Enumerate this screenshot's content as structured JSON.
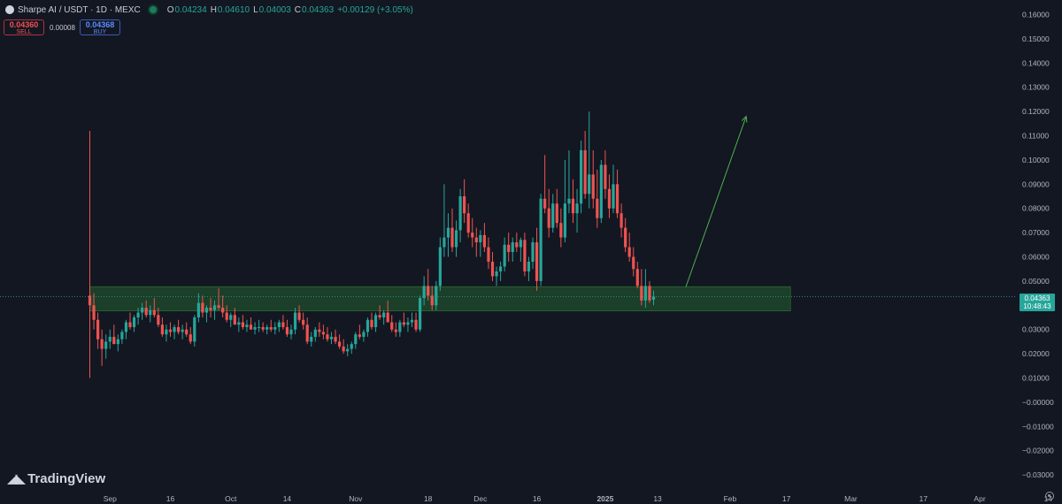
{
  "header": {
    "symbol": "Sharpe AI / USDT · 1D · MEXC",
    "open_label": "O",
    "open": "0.04234",
    "high_label": "H",
    "high": "0.04610",
    "low_label": "L",
    "low": "0.04003",
    "close_label": "C",
    "close": "0.04363",
    "change": "+0.00129 (+3.05%)"
  },
  "order": {
    "sell_price": "0.04360",
    "sell_label": "SELL",
    "spread": "0.00008",
    "buy_price": "0.04368",
    "buy_label": "BUY"
  },
  "price_label": {
    "price": "0.04363",
    "countdown": "10:48:43"
  },
  "brand": "TradingView",
  "colors": {
    "up": "#26a69a",
    "down": "#ef5350",
    "zone": "#1f4d2c",
    "arrow": "#4caf50",
    "background": "#131722"
  },
  "chart_data": {
    "type": "candlestick",
    "ylim": [
      -0.035,
      0.165
    ],
    "y_ticks": [
      "0.16000",
      "0.15000",
      "0.14000",
      "0.13000",
      "0.12000",
      "0.11000",
      "0.10000",
      "0.09000",
      "0.08000",
      "0.07000",
      "0.06000",
      "0.05000",
      "0.04000",
      "0.03000",
      "0.02000",
      "0.01000",
      "−0.00000",
      "−0.01000",
      "−0.02000",
      "−0.03000"
    ],
    "x_ticks": [
      "Sep",
      "16",
      "Oct",
      "14",
      "Nov",
      "18",
      "Dec",
      "16",
      "2025",
      "13",
      "Feb",
      "17",
      "Mar",
      "17",
      "Apr",
      "14"
    ],
    "x_tick_days": [
      5,
      20,
      35,
      49,
      66,
      84,
      97,
      111,
      128,
      141,
      159,
      173,
      189,
      207,
      221,
      238
    ],
    "first_day": 0,
    "current_price": 0.04363,
    "support_zone": {
      "top": 0.0477,
      "bottom": 0.0377,
      "start_day": 0,
      "end_day": 174
    },
    "arrow": {
      "from": [
        148,
        0.0475
      ],
      "to": [
        163,
        0.118
      ]
    },
    "candles": [
      [
        0.044,
        0.112,
        0.01,
        0.04
      ],
      [
        0.04,
        0.045,
        0.03,
        0.034
      ],
      [
        0.034,
        0.037,
        0.022,
        0.026
      ],
      [
        0.026,
        0.03,
        0.015,
        0.022
      ],
      [
        0.022,
        0.028,
        0.018,
        0.025
      ],
      [
        0.025,
        0.03,
        0.022,
        0.027
      ],
      [
        0.027,
        0.032,
        0.024,
        0.024
      ],
      [
        0.024,
        0.028,
        0.021,
        0.026
      ],
      [
        0.026,
        0.03,
        0.024,
        0.029
      ],
      [
        0.029,
        0.034,
        0.026,
        0.033
      ],
      [
        0.033,
        0.037,
        0.03,
        0.031
      ],
      [
        0.031,
        0.036,
        0.029,
        0.035
      ],
      [
        0.035,
        0.039,
        0.032,
        0.037
      ],
      [
        0.037,
        0.041,
        0.034,
        0.039
      ],
      [
        0.039,
        0.042,
        0.035,
        0.036
      ],
      [
        0.036,
        0.04,
        0.033,
        0.038
      ],
      [
        0.038,
        0.043,
        0.035,
        0.036
      ],
      [
        0.036,
        0.039,
        0.031,
        0.032
      ],
      [
        0.032,
        0.035,
        0.027,
        0.028
      ],
      [
        0.028,
        0.032,
        0.025,
        0.03
      ],
      [
        0.03,
        0.033,
        0.027,
        0.029
      ],
      [
        0.029,
        0.032,
        0.026,
        0.031
      ],
      [
        0.031,
        0.034,
        0.028,
        0.029
      ],
      [
        0.029,
        0.032,
        0.026,
        0.03
      ],
      [
        0.03,
        0.033,
        0.027,
        0.028
      ],
      [
        0.028,
        0.031,
        0.024,
        0.025
      ],
      [
        0.025,
        0.036,
        0.023,
        0.035
      ],
      [
        0.035,
        0.045,
        0.033,
        0.041
      ],
      [
        0.041,
        0.044,
        0.035,
        0.037
      ],
      [
        0.037,
        0.04,
        0.033,
        0.039
      ],
      [
        0.039,
        0.043,
        0.035,
        0.038
      ],
      [
        0.038,
        0.042,
        0.034,
        0.04
      ],
      [
        0.04,
        0.047,
        0.038,
        0.039
      ],
      [
        0.039,
        0.044,
        0.035,
        0.037
      ],
      [
        0.037,
        0.04,
        0.033,
        0.034
      ],
      [
        0.034,
        0.037,
        0.031,
        0.036
      ],
      [
        0.036,
        0.039,
        0.033,
        0.032
      ],
      [
        0.032,
        0.035,
        0.029,
        0.033
      ],
      [
        0.033,
        0.036,
        0.03,
        0.031
      ],
      [
        0.031,
        0.034,
        0.029,
        0.032
      ],
      [
        0.032,
        0.035,
        0.03,
        0.03
      ],
      [
        0.03,
        0.033,
        0.028,
        0.031
      ],
      [
        0.031,
        0.034,
        0.029,
        0.031
      ],
      [
        0.031,
        0.033,
        0.029,
        0.03
      ],
      [
        0.03,
        0.032,
        0.028,
        0.031
      ],
      [
        0.031,
        0.034,
        0.029,
        0.03
      ],
      [
        0.03,
        0.033,
        0.028,
        0.031
      ],
      [
        0.031,
        0.034,
        0.029,
        0.033
      ],
      [
        0.033,
        0.036,
        0.03,
        0.031
      ],
      [
        0.031,
        0.034,
        0.027,
        0.028
      ],
      [
        0.028,
        0.032,
        0.026,
        0.03
      ],
      [
        0.03,
        0.039,
        0.028,
        0.037
      ],
      [
        0.037,
        0.04,
        0.033,
        0.034
      ],
      [
        0.034,
        0.037,
        0.03,
        0.032
      ],
      [
        0.032,
        0.035,
        0.024,
        0.025
      ],
      [
        0.025,
        0.029,
        0.023,
        0.027
      ],
      [
        0.027,
        0.031,
        0.025,
        0.03
      ],
      [
        0.03,
        0.033,
        0.027,
        0.029
      ],
      [
        0.029,
        0.032,
        0.026,
        0.028
      ],
      [
        0.028,
        0.031,
        0.025,
        0.026
      ],
      [
        0.026,
        0.029,
        0.024,
        0.027
      ],
      [
        0.027,
        0.03,
        0.024,
        0.025
      ],
      [
        0.025,
        0.028,
        0.022,
        0.023
      ],
      [
        0.023,
        0.026,
        0.02,
        0.021
      ],
      [
        0.021,
        0.024,
        0.019,
        0.022
      ],
      [
        0.022,
        0.025,
        0.02,
        0.024
      ],
      [
        0.024,
        0.029,
        0.022,
        0.028
      ],
      [
        0.028,
        0.032,
        0.026,
        0.027
      ],
      [
        0.027,
        0.03,
        0.025,
        0.029
      ],
      [
        0.029,
        0.035,
        0.027,
        0.034
      ],
      [
        0.034,
        0.037,
        0.03,
        0.031
      ],
      [
        0.031,
        0.037,
        0.029,
        0.036
      ],
      [
        0.036,
        0.04,
        0.034,
        0.035
      ],
      [
        0.035,
        0.038,
        0.032,
        0.037
      ],
      [
        0.037,
        0.042,
        0.034,
        0.033
      ],
      [
        0.033,
        0.036,
        0.029,
        0.03
      ],
      [
        0.03,
        0.033,
        0.027,
        0.029
      ],
      [
        0.029,
        0.034,
        0.027,
        0.033
      ],
      [
        0.033,
        0.037,
        0.031,
        0.032
      ],
      [
        0.032,
        0.035,
        0.029,
        0.033
      ],
      [
        0.033,
        0.037,
        0.031,
        0.034
      ],
      [
        0.034,
        0.037,
        0.029,
        0.03
      ],
      [
        0.03,
        0.044,
        0.029,
        0.043
      ],
      [
        0.043,
        0.052,
        0.04,
        0.048
      ],
      [
        0.048,
        0.055,
        0.042,
        0.044
      ],
      [
        0.044,
        0.048,
        0.038,
        0.04
      ],
      [
        0.04,
        0.05,
        0.038,
        0.048
      ],
      [
        0.048,
        0.068,
        0.046,
        0.064
      ],
      [
        0.064,
        0.09,
        0.06,
        0.068
      ],
      [
        0.068,
        0.078,
        0.06,
        0.072
      ],
      [
        0.072,
        0.08,
        0.062,
        0.064
      ],
      [
        0.064,
        0.075,
        0.06,
        0.071
      ],
      [
        0.071,
        0.088,
        0.066,
        0.085
      ],
      [
        0.085,
        0.092,
        0.074,
        0.078
      ],
      [
        0.078,
        0.082,
        0.068,
        0.07
      ],
      [
        0.07,
        0.076,
        0.064,
        0.068
      ],
      [
        0.068,
        0.072,
        0.06,
        0.066
      ],
      [
        0.066,
        0.071,
        0.06,
        0.069
      ],
      [
        0.069,
        0.074,
        0.062,
        0.064
      ],
      [
        0.064,
        0.068,
        0.055,
        0.058
      ],
      [
        0.058,
        0.062,
        0.05,
        0.052
      ],
      [
        0.052,
        0.056,
        0.048,
        0.054
      ],
      [
        0.054,
        0.058,
        0.05,
        0.056
      ],
      [
        0.056,
        0.068,
        0.054,
        0.065
      ],
      [
        0.065,
        0.07,
        0.058,
        0.062
      ],
      [
        0.062,
        0.068,
        0.058,
        0.066
      ],
      [
        0.066,
        0.07,
        0.062,
        0.064
      ],
      [
        0.064,
        0.068,
        0.058,
        0.067
      ],
      [
        0.067,
        0.07,
        0.052,
        0.054
      ],
      [
        0.054,
        0.06,
        0.05,
        0.058
      ],
      [
        0.058,
        0.068,
        0.055,
        0.066
      ],
      [
        0.066,
        0.072,
        0.046,
        0.05
      ],
      [
        0.05,
        0.086,
        0.048,
        0.084
      ],
      [
        0.084,
        0.102,
        0.078,
        0.08
      ],
      [
        0.08,
        0.088,
        0.068,
        0.072
      ],
      [
        0.072,
        0.086,
        0.07,
        0.082
      ],
      [
        0.082,
        0.088,
        0.072,
        0.074
      ],
      [
        0.074,
        0.08,
        0.064,
        0.068
      ],
      [
        0.068,
        0.1,
        0.066,
        0.082
      ],
      [
        0.082,
        0.104,
        0.078,
        0.084
      ],
      [
        0.084,
        0.092,
        0.074,
        0.078
      ],
      [
        0.078,
        0.088,
        0.07,
        0.082
      ],
      [
        0.082,
        0.108,
        0.078,
        0.104
      ],
      [
        0.104,
        0.112,
        0.084,
        0.086
      ],
      [
        0.086,
        0.12,
        0.08,
        0.094
      ],
      [
        0.094,
        0.104,
        0.08,
        0.084
      ],
      [
        0.084,
        0.096,
        0.072,
        0.076
      ],
      [
        0.076,
        0.1,
        0.074,
        0.098
      ],
      [
        0.098,
        0.104,
        0.084,
        0.088
      ],
      [
        0.088,
        0.094,
        0.076,
        0.08
      ],
      [
        0.08,
        0.098,
        0.078,
        0.09
      ],
      [
        0.09,
        0.096,
        0.076,
        0.078
      ],
      [
        0.078,
        0.082,
        0.068,
        0.072
      ],
      [
        0.072,
        0.076,
        0.062,
        0.064
      ],
      [
        0.064,
        0.07,
        0.058,
        0.06
      ],
      [
        0.06,
        0.064,
        0.052,
        0.055
      ],
      [
        0.055,
        0.058,
        0.047,
        0.048
      ],
      [
        0.048,
        0.055,
        0.04,
        0.042
      ],
      [
        0.042,
        0.055,
        0.039,
        0.048
      ],
      [
        0.048,
        0.05,
        0.041,
        0.042
      ],
      [
        0.04234,
        0.0461,
        0.04003,
        0.04363
      ]
    ]
  }
}
